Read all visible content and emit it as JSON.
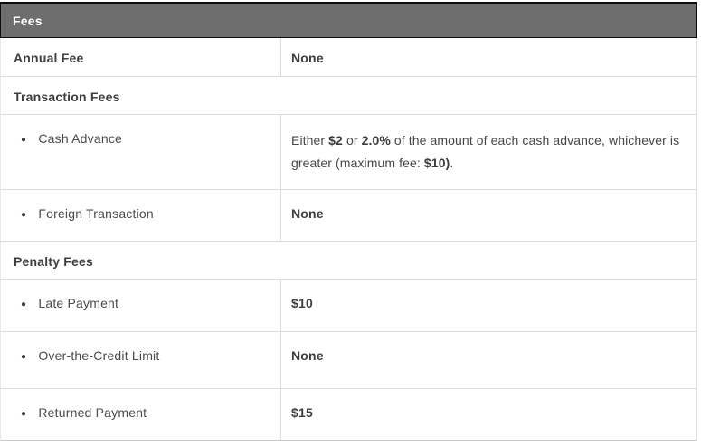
{
  "header": {
    "title": "Fees"
  },
  "icons": {
    "bullet": "●"
  },
  "rows": {
    "annual_fee": {
      "label": "Annual Fee",
      "value": "None"
    },
    "transaction_fees_section": {
      "label": "Transaction Fees"
    },
    "cash_advance": {
      "label": "Cash Advance",
      "value_parts": {
        "p0": "Either ",
        "b1": "$2",
        "p2": " or ",
        "b3": "2.0%",
        "p4": " of the amount of each cash advance, whichever is greater (maximum fee: ",
        "b5": "$10)",
        "p6": "."
      }
    },
    "foreign_transaction": {
      "label": "Foreign Transaction",
      "value": "None"
    },
    "penalty_fees_section": {
      "label": "Penalty Fees"
    },
    "late_payment": {
      "label": "Late Payment",
      "value": "$10"
    },
    "over_the_credit_limit": {
      "label": "Over-the-Credit Limit",
      "value": "None"
    },
    "returned_payment": {
      "label": "Returned Payment",
      "value": "$15"
    }
  },
  "colors": {
    "header_bg": "#6e6e6e",
    "header_text": "#ffffff",
    "header_border": "#0d0d0d",
    "row_border": "#dcdcdc",
    "label_text": "#3e3e3e",
    "body_text": "#464646"
  }
}
